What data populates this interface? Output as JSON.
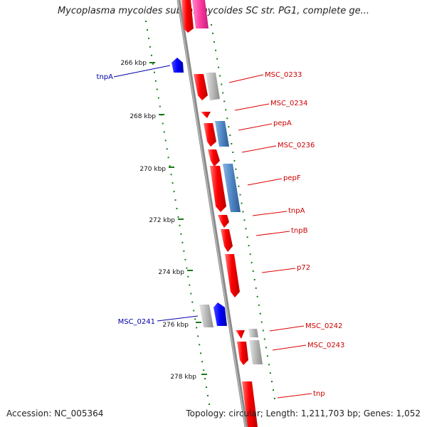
{
  "title": "Mycoplasma mycoides subsp. mycoides SC str. PG1, complete ge...",
  "footer": {
    "accession": "Accession: NC_005364",
    "topology": "Topology: circular; Length: 1,211,703 bp; Genes: 1,052"
  },
  "colors": {
    "backbone": "#8a8a8a",
    "forward_gene": "#ff0000",
    "reverse_gene": "#0000ff",
    "other_gene": "#b8b8b8",
    "blue_gene": "#4f86c6",
    "pink_gene": "#ff3aa0",
    "tick": "#1a7a1a",
    "red_label": "#cc0000",
    "blue_label": "#0000aa"
  },
  "ticks": [
    "266 kbp",
    "268 kbp",
    "270 kbp",
    "272 kbp",
    "274 kbp",
    "276 kbp",
    "278 kbp"
  ],
  "gene_labels": {
    "right": [
      "MSC_0233",
      "MSC_0234",
      "pepA",
      "MSC_0236",
      "pepF",
      "tnpA",
      "tnpB",
      "p72",
      "MSC_0242",
      "MSC_0243",
      "tnp"
    ],
    "left": [
      "tnpA",
      "MSC_0241"
    ]
  }
}
